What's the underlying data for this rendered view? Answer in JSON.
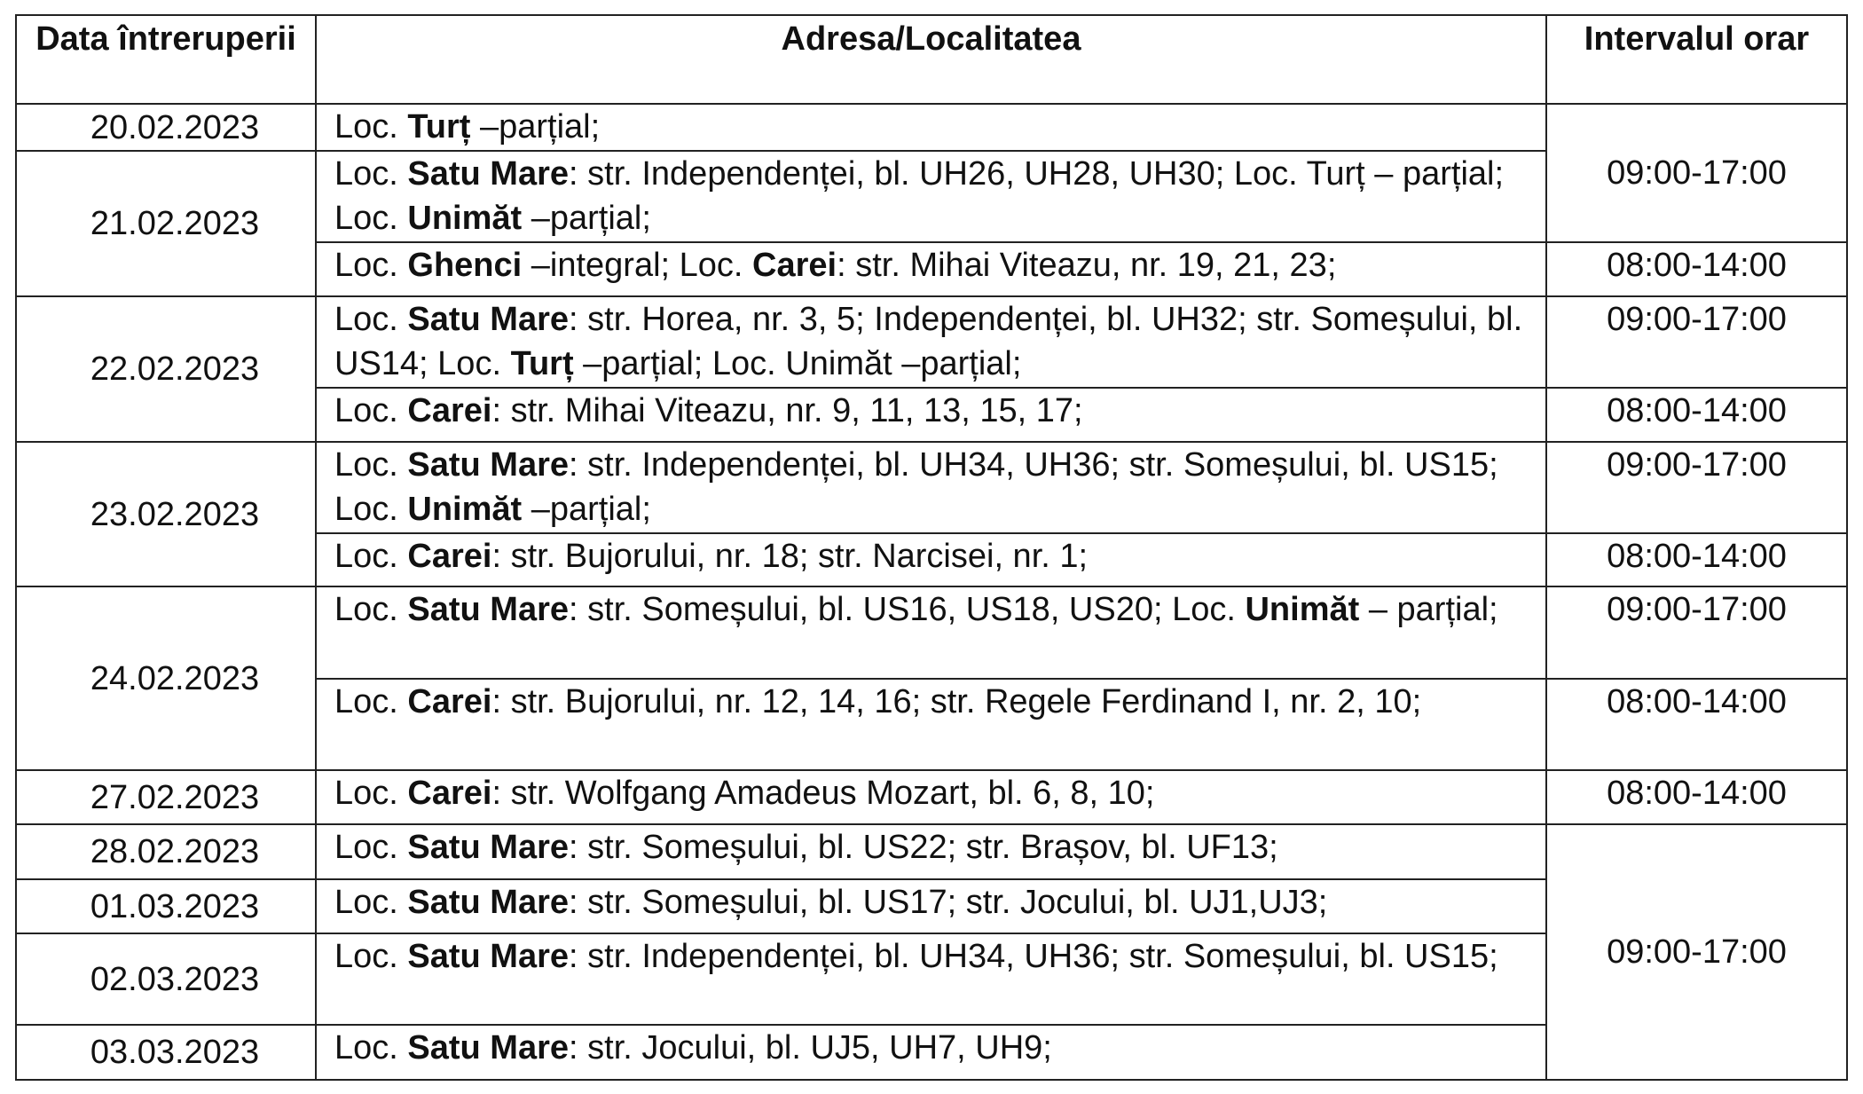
{
  "headers": {
    "date": "Data întreruperii",
    "address": "Adresa/Localitatea",
    "interval": "Intervalul orar"
  },
  "rows": [
    {
      "date": "20.02.2023",
      "address": [
        {
          "t": "Loc. "
        },
        {
          "t": "Turț",
          "b": true
        },
        {
          "t": " –parțial;"
        }
      ],
      "interval": "09:00-17:00"
    },
    {
      "date": "21.02.2023",
      "address": [
        {
          "t": "Loc. "
        },
        {
          "t": "Satu Mare",
          "b": true
        },
        {
          "t": ": str. Independenței, bl. UH26, UH28, UH30; Loc. Turț – parțial; Loc. "
        },
        {
          "t": "Unimăt",
          "b": true
        },
        {
          "t": " –parțial;"
        }
      ]
    },
    {
      "address": [
        {
          "t": "Loc. "
        },
        {
          "t": "Ghenci",
          "b": true
        },
        {
          "t": " –integral; Loc. "
        },
        {
          "t": "Carei",
          "b": true
        },
        {
          "t": ": str. Mihai Viteazu, nr. 19, 21, 23;"
        }
      ],
      "interval": "08:00-14:00"
    },
    {
      "date": "22.02.2023",
      "address": [
        {
          "t": "Loc. "
        },
        {
          "t": "Satu Mare",
          "b": true
        },
        {
          "t": ": str. Horea, nr. 3, 5; Independenței, bl. UH32; str. Someșului, bl. US14; Loc. "
        },
        {
          "t": "Turț",
          "b": true
        },
        {
          "t": " –parțial; Loc. Unimăt –parțial;"
        }
      ],
      "interval": "09:00-17:00"
    },
    {
      "address": [
        {
          "t": "Loc. "
        },
        {
          "t": "Carei",
          "b": true
        },
        {
          "t": ": str. Mihai Viteazu, nr. 9, 11, 13, 15, 17;"
        }
      ],
      "interval": "08:00-14:00"
    },
    {
      "date": "23.02.2023",
      "address": [
        {
          "t": "Loc. "
        },
        {
          "t": "Satu Mare",
          "b": true
        },
        {
          "t": ": str. Independenței, bl. UH34, UH36; str. Someșului, bl. US15; Loc. "
        },
        {
          "t": "Unimăt",
          "b": true
        },
        {
          "t": " –parțial;"
        }
      ],
      "interval": "09:00-17:00"
    },
    {
      "address": [
        {
          "t": "Loc. "
        },
        {
          "t": "Carei",
          "b": true
        },
        {
          "t": ": str. Bujorului, nr. 18; str. Narcisei, nr. 1;"
        }
      ],
      "interval": "08:00-14:00"
    },
    {
      "date": "24.02.2023",
      "address": [
        {
          "t": "Loc. "
        },
        {
          "t": "Satu Mare",
          "b": true
        },
        {
          "t": ": str. Someșului, bl. US16, US18, US20; Loc. "
        },
        {
          "t": "Unimăt",
          "b": true
        },
        {
          "t": " – parțial;"
        }
      ],
      "interval": "09:00-17:00"
    },
    {
      "address": [
        {
          "t": "Loc. "
        },
        {
          "t": "Carei",
          "b": true
        },
        {
          "t": ": str. Bujorului, nr. 12, 14, 16; str. Regele Ferdinand I, nr. 2, 10;"
        }
      ],
      "interval": "08:00-14:00"
    },
    {
      "date": "27.02.2023",
      "address": [
        {
          "t": "Loc. "
        },
        {
          "t": "Carei",
          "b": true
        },
        {
          "t": ": str. Wolfgang Amadeus Mozart, bl. 6, 8, 10;"
        }
      ],
      "interval": "08:00-14:00"
    },
    {
      "date": "28.02.2023",
      "address": [
        {
          "t": "Loc. "
        },
        {
          "t": "Satu Mare",
          "b": true
        },
        {
          "t": ": str. Someșului, bl. US22; str. Brașov, bl. UF13;"
        }
      ],
      "interval": "09:00-17:00"
    },
    {
      "date": "01.03.2023",
      "address": [
        {
          "t": "Loc. "
        },
        {
          "t": "Satu Mare",
          "b": true
        },
        {
          "t": ": str. Someșului, bl. US17; str. Jocului, bl. UJ1,UJ3;"
        }
      ]
    },
    {
      "date": "02.03.2023",
      "address": [
        {
          "t": "Loc. "
        },
        {
          "t": "Satu Mare",
          "b": true
        },
        {
          "t": ": str. Independenței, bl. UH34, UH36; str. Someșului, bl. US15;"
        }
      ]
    },
    {
      "date": "03.03.2023",
      "address": [
        {
          "t": "Loc. "
        },
        {
          "t": "Satu Mare",
          "b": true
        },
        {
          "t": ": str. Jocului, bl. UJ5, UH7, UH9;"
        }
      ]
    }
  ]
}
